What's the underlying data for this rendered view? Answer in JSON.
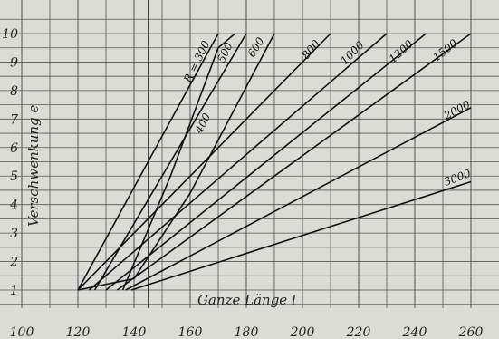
{
  "chart_data": {
    "type": "line",
    "title": "",
    "xlabel": "Ganze Länge l",
    "ylabel": "Verschwenkung e",
    "xlim": [
      100,
      265
    ],
    "ylim": [
      0.4,
      10.4
    ],
    "x_ticks": [
      "100",
      "120",
      "140",
      "160",
      "180",
      "200",
      "220",
      "240",
      "260"
    ],
    "y_ticks": [
      "1",
      "2",
      "3",
      "4",
      "5",
      "6",
      "7",
      "8",
      "9",
      "10"
    ],
    "grid": true,
    "series": [
      {
        "name": "R = 300",
        "points": [
          [
            120,
            1
          ],
          [
            170,
            10
          ]
        ]
      },
      {
        "name": "500",
        "points": [
          [
            126,
            1
          ],
          [
            180,
            10
          ]
        ]
      },
      {
        "name": "600",
        "points": [
          [
            120,
            1
          ],
          [
            140,
            1.4
          ],
          [
            160,
            4.4
          ],
          [
            190,
            10
          ]
        ]
      },
      {
        "name": "400",
        "points": [
          [
            136,
            1
          ],
          [
            153,
            5
          ],
          [
            170,
            9.5
          ],
          [
            176,
            10
          ]
        ]
      },
      {
        "name": "800",
        "points": [
          [
            120,
            1
          ],
          [
            210,
            10
          ]
        ]
      },
      {
        "name": "1000",
        "points": [
          [
            124,
            1
          ],
          [
            230,
            10
          ]
        ]
      },
      {
        "name": "1200",
        "points": [
          [
            130,
            1
          ],
          [
            244,
            10
          ]
        ]
      },
      {
        "name": "1500",
        "points": [
          [
            134,
            1
          ],
          [
            260,
            10
          ]
        ]
      },
      {
        "name": "2000",
        "points": [
          [
            137,
            1
          ],
          [
            260,
            7.4
          ]
        ]
      },
      {
        "name": "3000",
        "points": [
          [
            139,
            1
          ],
          [
            260,
            4.8
          ]
        ]
      }
    ],
    "series_labels": [
      "R = 300",
      "500",
      "600",
      "400",
      "800",
      "1000",
      "1200",
      "1500",
      "2000",
      "3000"
    ]
  }
}
